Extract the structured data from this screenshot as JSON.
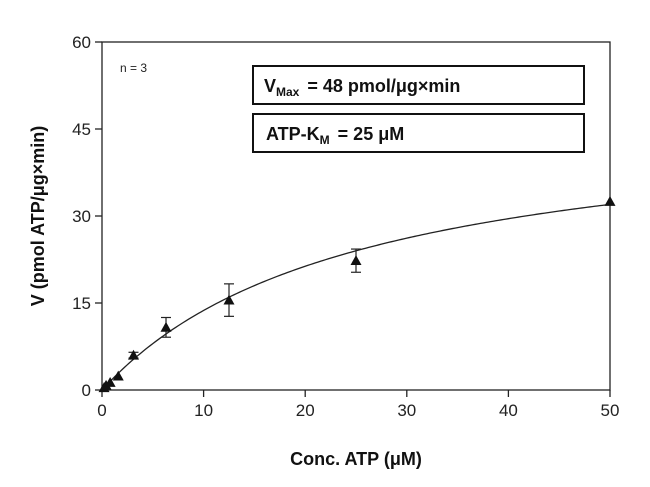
{
  "chart_data": {
    "type": "scatter",
    "xlabel": "Conc. ATP (μM)",
    "ylabel": "V (pmol ATP/μg×min)",
    "xlim": [
      0,
      50
    ],
    "ylim": [
      0,
      60
    ],
    "xticks": [
      0,
      10,
      20,
      30,
      40,
      50
    ],
    "yticks": [
      0,
      15,
      30,
      45,
      60
    ],
    "grid": false,
    "annotation_n": "n = 3",
    "vmax_box": {
      "v_main": "V",
      "v_sub": "Max",
      "value_text": "=  48  pmol/μg×min"
    },
    "km_box": {
      "k_main": "ATP-K",
      "k_sub": "M",
      "value_text": "=  25  μM"
    },
    "fit": {
      "model": "michaelis-menten",
      "vmax": 48,
      "km": 25
    },
    "series": [
      {
        "marker": "triangle",
        "x": [
          0.2,
          0.4,
          0.8,
          1.6,
          3.1,
          6.3,
          12.5,
          25,
          50
        ],
        "y": [
          0.4,
          0.8,
          1.3,
          2.4,
          6.0,
          10.8,
          15.5,
          22.3,
          32.5
        ],
        "err": [
          0,
          0,
          0,
          0,
          0.5,
          1.7,
          2.8,
          2.0,
          0
        ]
      }
    ]
  }
}
